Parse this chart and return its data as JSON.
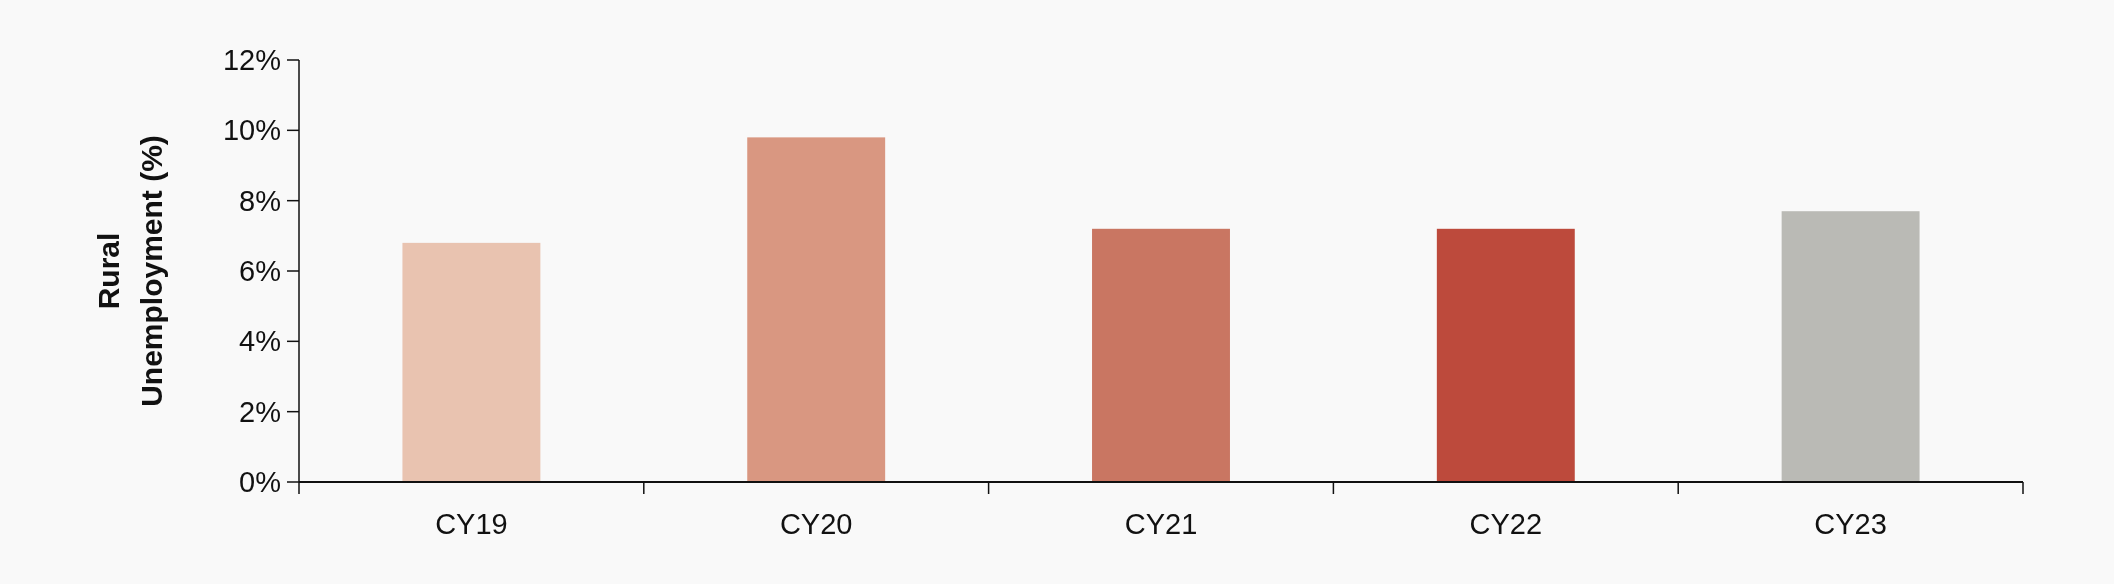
{
  "chart_data": {
    "type": "bar",
    "ylabel": "Rural Unemployment (%)",
    "categories": [
      "CY19",
      "CY20",
      "CY21",
      "CY22",
      "CY23"
    ],
    "values": [
      6.8,
      9.8,
      7.2,
      7.2,
      7.7
    ],
    "colors": [
      "#e9c3b0",
      "#d99781",
      "#c97662",
      "#bd4a3c",
      "#babab5"
    ],
    "ylim": [
      0,
      12
    ],
    "yticks": [
      {
        "value": 0,
        "label": "0%"
      },
      {
        "value": 2,
        "label": "2%"
      },
      {
        "value": 4,
        "label": "4%"
      },
      {
        "value": 6,
        "label": "6%"
      },
      {
        "value": 8,
        "label": "8%"
      },
      {
        "value": 10,
        "label": "10%"
      },
      {
        "value": 12,
        "label": "12%"
      }
    ]
  }
}
